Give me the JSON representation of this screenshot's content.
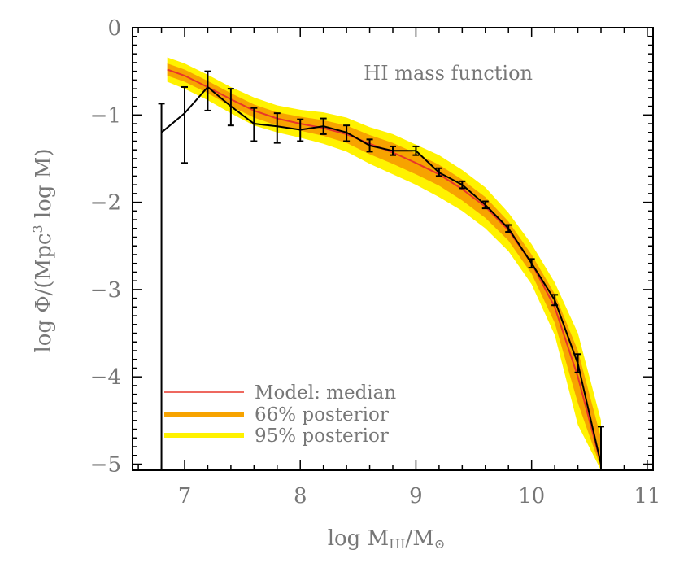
{
  "chart_data": {
    "type": "line",
    "title": "HI mass function",
    "xlabel_parts": {
      "prefix": "log M",
      "sub": "HI",
      "mid": "/M",
      "sun": "⊙"
    },
    "ylabel_parts": {
      "prefix": "log Φ/(Mpc",
      "sup": "3",
      "suffix": " log M)"
    },
    "xlim": [
      6.55,
      11.05
    ],
    "ylim": [
      -5.07,
      0.0
    ],
    "x_ticks": [
      7,
      8,
      9,
      10,
      11
    ],
    "x_tick_labels": [
      "7",
      "8",
      "9",
      "10",
      "11"
    ],
    "y_ticks": [
      0,
      -1,
      -2,
      -3,
      -4,
      -5
    ],
    "y_tick_labels": [
      "0",
      "−1",
      "−2",
      "−3",
      "−4",
      "−5"
    ],
    "legend": {
      "position": "bottom-left",
      "entries": [
        {
          "label": "Model: median",
          "color": "#e8362a"
        },
        {
          "label": "66% posterior",
          "color": "#f7a300"
        },
        {
          "label": "95% posterior",
          "color": "#fff200"
        }
      ]
    },
    "observations": {
      "color": "#000000",
      "x": [
        6.8,
        7.0,
        7.2,
        7.4,
        7.6,
        7.8,
        8.0,
        8.2,
        8.4,
        8.6,
        8.8,
        9.0,
        9.2,
        9.4,
        9.6,
        9.8,
        10.0,
        10.2,
        10.4,
        10.6
      ],
      "y": [
        -1.2,
        -0.98,
        -0.68,
        -0.9,
        -1.1,
        -1.13,
        -1.17,
        -1.13,
        -1.2,
        -1.35,
        -1.41,
        -1.41,
        -1.66,
        -1.8,
        -2.03,
        -2.3,
        -2.7,
        -3.12,
        -3.85,
        -5.0
      ],
      "err_low": [
        -5.07,
        -1.55,
        -0.95,
        -1.12,
        -1.3,
        -1.32,
        -1.3,
        -1.22,
        -1.3,
        -1.42,
        -1.46,
        -1.46,
        -1.7,
        -1.84,
        -2.07,
        -2.34,
        -2.75,
        -3.18,
        -3.95,
        -5.07
      ],
      "err_high": [
        -0.87,
        -0.68,
        -0.5,
        -0.7,
        -0.92,
        -0.98,
        -1.05,
        -1.04,
        -1.12,
        -1.28,
        -1.36,
        -1.36,
        -1.61,
        -1.76,
        -1.99,
        -2.26,
        -2.65,
        -3.06,
        -3.74,
        -4.57
      ]
    },
    "model": {
      "x": [
        6.85,
        7.0,
        7.2,
        7.4,
        7.6,
        7.8,
        8.0,
        8.2,
        8.4,
        8.6,
        8.8,
        9.0,
        9.2,
        9.4,
        9.6,
        9.8,
        10.0,
        10.2,
        10.4,
        10.6
      ],
      "median": [
        -0.48,
        -0.55,
        -0.68,
        -0.82,
        -0.95,
        -1.04,
        -1.1,
        -1.15,
        -1.22,
        -1.33,
        -1.43,
        -1.55,
        -1.68,
        -1.85,
        -2.05,
        -2.32,
        -2.7,
        -3.2,
        -4.0,
        -5.0
      ],
      "p66_low": [
        -0.55,
        -0.62,
        -0.75,
        -0.9,
        -1.03,
        -1.12,
        -1.18,
        -1.24,
        -1.32,
        -1.45,
        -1.56,
        -1.68,
        -1.81,
        -1.98,
        -2.18,
        -2.44,
        -2.82,
        -3.38,
        -4.3,
        -5.05
      ],
      "p66_high": [
        -0.41,
        -0.48,
        -0.61,
        -0.75,
        -0.88,
        -0.97,
        -1.02,
        -1.06,
        -1.12,
        -1.23,
        -1.32,
        -1.44,
        -1.57,
        -1.74,
        -1.94,
        -2.22,
        -2.6,
        -3.05,
        -3.7,
        -4.7
      ],
      "p95_low": [
        -0.62,
        -0.7,
        -0.83,
        -0.98,
        -1.12,
        -1.2,
        -1.26,
        -1.33,
        -1.42,
        -1.56,
        -1.68,
        -1.8,
        -1.94,
        -2.1,
        -2.3,
        -2.56,
        -2.94,
        -3.52,
        -4.55,
        -5.07
      ],
      "p95_high": [
        -0.34,
        -0.41,
        -0.54,
        -0.68,
        -0.8,
        -0.89,
        -0.94,
        -0.97,
        -1.03,
        -1.14,
        -1.22,
        -1.34,
        -1.46,
        -1.63,
        -1.83,
        -2.12,
        -2.48,
        -2.92,
        -3.5,
        -4.5
      ]
    }
  }
}
